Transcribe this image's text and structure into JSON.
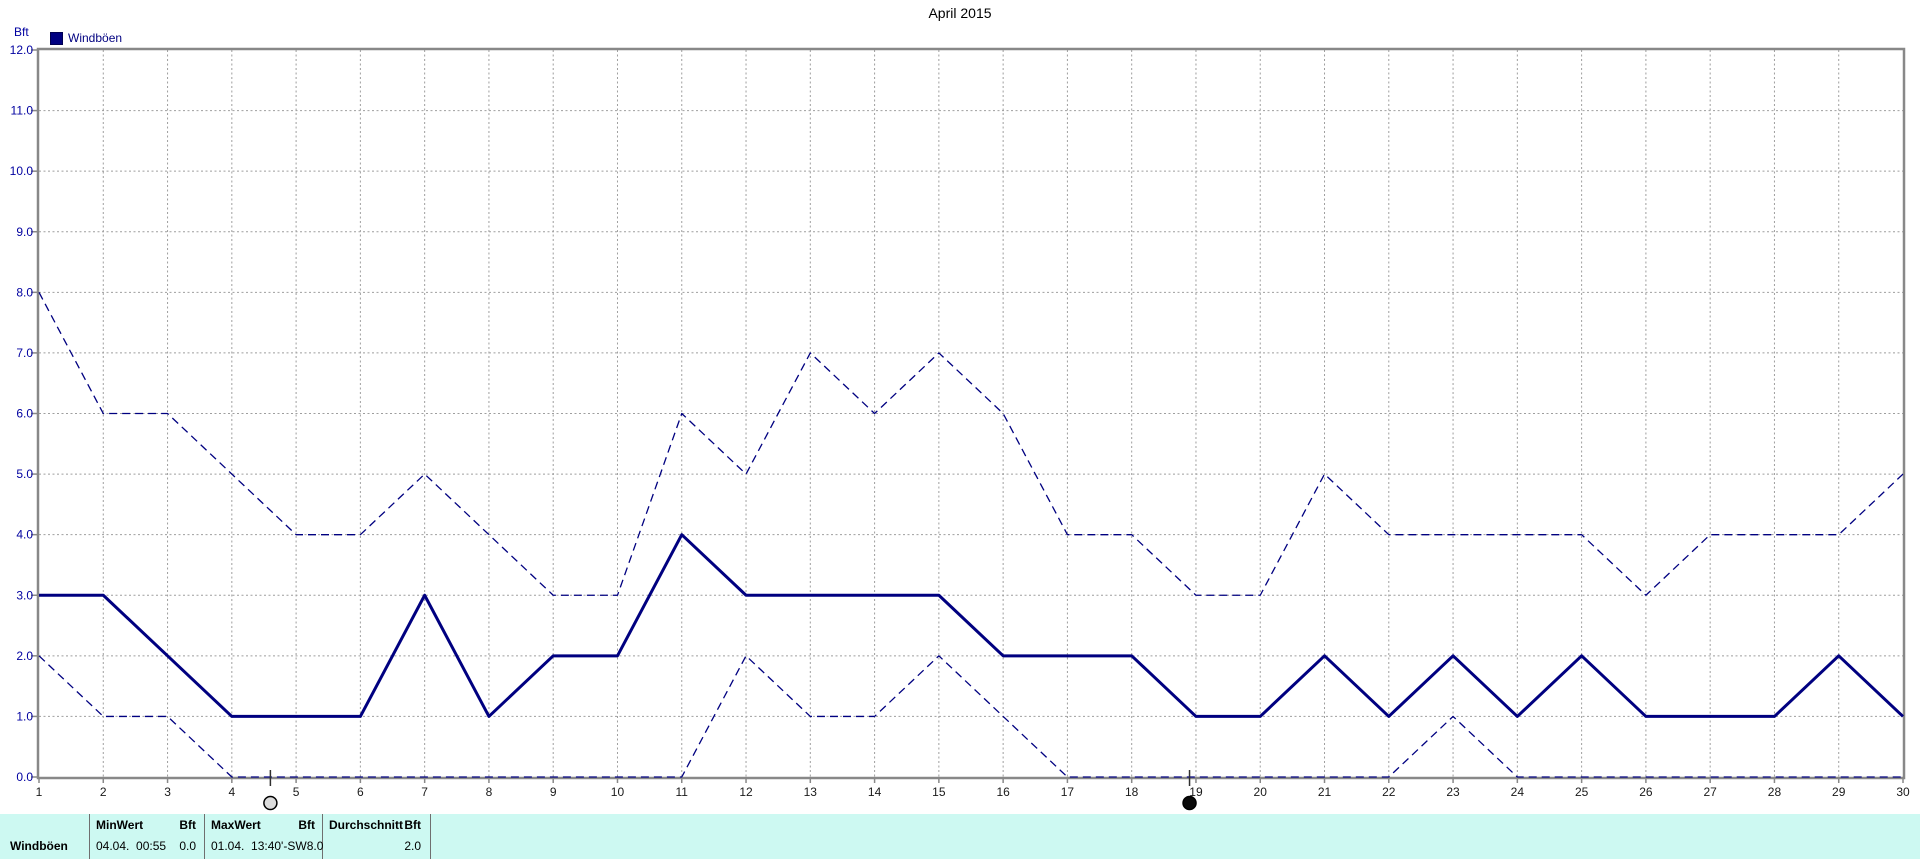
{
  "title": "April 2015",
  "y_axis_label": "Bft",
  "legend": {
    "label": "Windböen",
    "swatch_color": "#000080"
  },
  "colors": {
    "series_navy": "#000080",
    "y_tick_label": "#0000A0",
    "x_tick_label": "#1a1a1a",
    "grid": "#9e9e9e",
    "border": "#888888",
    "table_background": "#CDF9F2"
  },
  "chart_data": {
    "type": "line",
    "title": "April 2015",
    "xlabel": "",
    "ylabel": "Bft",
    "xlim": [
      1,
      30
    ],
    "ylim": [
      0,
      12
    ],
    "grid": true,
    "legend_position": "top-left",
    "legend_entries": [
      "Windböen"
    ],
    "xticks": [
      1,
      2,
      3,
      4,
      5,
      6,
      7,
      8,
      9,
      10,
      11,
      12,
      13,
      14,
      15,
      16,
      17,
      18,
      19,
      20,
      21,
      22,
      23,
      24,
      25,
      26,
      27,
      28,
      29,
      30
    ],
    "yticks": [
      "0.0",
      "1.0",
      "2.0",
      "3.0",
      "4.0",
      "5.0",
      "6.0",
      "7.0",
      "8.0",
      "9.0",
      "10.0",
      "11.0",
      "12.0"
    ],
    "x": [
      1,
      2,
      3,
      4,
      5,
      6,
      7,
      8,
      9,
      10,
      11,
      12,
      13,
      14,
      15,
      16,
      17,
      18,
      19,
      20,
      21,
      22,
      23,
      24,
      25,
      26,
      27,
      28,
      29,
      30
    ],
    "series": [
      {
        "name": "daily-max",
        "style": "dashed",
        "color": "#000080",
        "values": [
          8,
          6,
          6,
          5,
          4,
          4,
          5,
          4,
          3,
          3,
          6,
          5,
          7,
          6,
          7,
          6,
          4,
          4,
          3,
          3,
          5,
          4,
          4,
          4,
          4,
          3,
          4,
          4,
          4,
          5
        ]
      },
      {
        "name": "windboeen",
        "style": "solid",
        "color": "#000080",
        "values": [
          3,
          3,
          2,
          1,
          1,
          1,
          3,
          1,
          2,
          2,
          4,
          3,
          3,
          3,
          3,
          2,
          2,
          2,
          1,
          1,
          2,
          1,
          2,
          1,
          2,
          1,
          1,
          1,
          2,
          1
        ]
      },
      {
        "name": "daily-min",
        "style": "dashed",
        "color": "#000080",
        "values": [
          2,
          1,
          1,
          0,
          0,
          0,
          0,
          0,
          0,
          0,
          0,
          2,
          1,
          1,
          2,
          1,
          0,
          0,
          0,
          0,
          0,
          0,
          1,
          0,
          0,
          0,
          0,
          0,
          0,
          0
        ]
      }
    ],
    "moon_markers": [
      {
        "day": 4.6,
        "phase": "full-moon-open"
      },
      {
        "day": 18.9,
        "phase": "new-moon-filled"
      }
    ]
  },
  "stats_table": {
    "row_label": "Windböen",
    "columns": [
      {
        "header": "MinWert",
        "unit": "Bft",
        "value": "04.04.  00:55",
        "amount": "0.0"
      },
      {
        "header": "MaxWert",
        "unit": "Bft",
        "value": "01.04.  13:40'-SW",
        "amount": "8.0"
      },
      {
        "header": "Durchschnitt",
        "unit": "Bft",
        "value": "",
        "amount": "2.0"
      }
    ]
  }
}
